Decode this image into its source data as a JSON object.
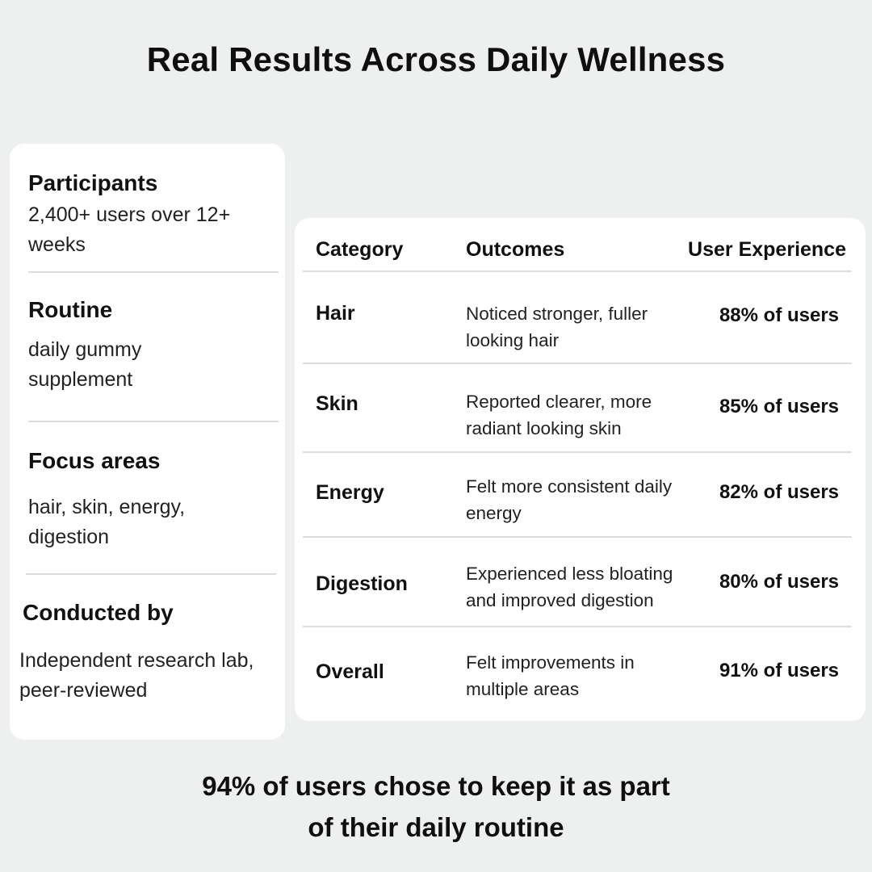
{
  "title": "Real Results Across Daily Wellness",
  "study": {
    "participants_label": "Participants",
    "participants_value": "2,400+ users over 12+ weeks",
    "routine_label": "Routine",
    "routine_value": "daily gummy supplement",
    "focus_label": "Focus areas",
    "focus_value": "hair, skin, energy, digestion",
    "conducted_label": "Conducted by",
    "conducted_value": "Independent research lab, peer-reviewed"
  },
  "results": {
    "headers": {
      "category": "Category",
      "outcomes": "Outcomes",
      "experience": "User Experience"
    },
    "rows": [
      {
        "category": "Hair",
        "outcome": "Noticed stronger, fuller looking hair",
        "experience": "88% of users"
      },
      {
        "category": "Skin",
        "outcome": "Reported clearer, more radiant looking skin",
        "experience": "85% of users"
      },
      {
        "category": "Energy",
        "outcome": "Felt more consistent daily energy",
        "experience": "82% of users"
      },
      {
        "category": "Digestion",
        "outcome": "Experienced less bloating and improved digestion",
        "experience": "80% of users"
      },
      {
        "category": "Overall",
        "outcome": "Felt improvements in multiple areas",
        "experience": "91% of users"
      }
    ]
  },
  "footer": "94% of users chose to keep it as part of their daily routine"
}
